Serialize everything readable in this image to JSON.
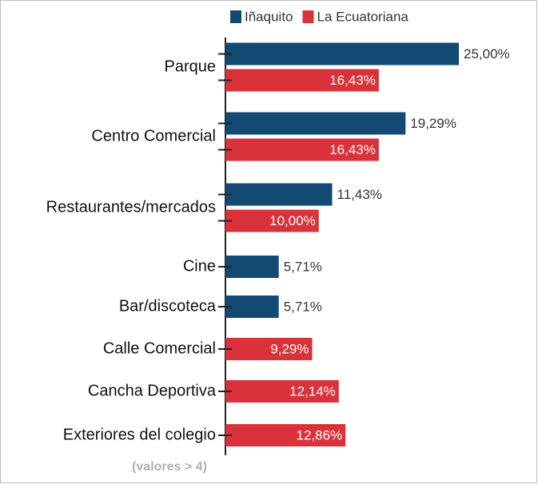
{
  "chart_data": {
    "type": "bar",
    "orientation": "horizontal",
    "categories": [
      "Parque",
      "Centro Comercial",
      "Restaurantes/mercados",
      "Cine",
      "Bar/discoteca",
      "Calle Comercial",
      "Cancha Deportiva",
      "Exteriores del colegio"
    ],
    "series": [
      {
        "name": "Iñaquito",
        "color": "#124a73",
        "values": [
          25.0,
          19.29,
          11.43,
          5.71,
          5.71,
          null,
          null,
          null
        ],
        "value_labels": [
          "25,00%",
          "19,29%",
          "11,43%",
          "5,71%",
          "5,71%",
          null,
          null,
          null
        ]
      },
      {
        "name": "La Ecuatoriana",
        "color": "#d9323a",
        "values": [
          16.43,
          16.43,
          10.0,
          null,
          null,
          9.29,
          12.14,
          12.86
        ],
        "value_labels": [
          "16,43%",
          "16,43%",
          "10,00%",
          null,
          null,
          "9,29%",
          "12,14%",
          "12,86%"
        ]
      }
    ],
    "xlim": [
      0,
      25
    ],
    "annotation": "(valores > 4)",
    "legend": "top"
  }
}
